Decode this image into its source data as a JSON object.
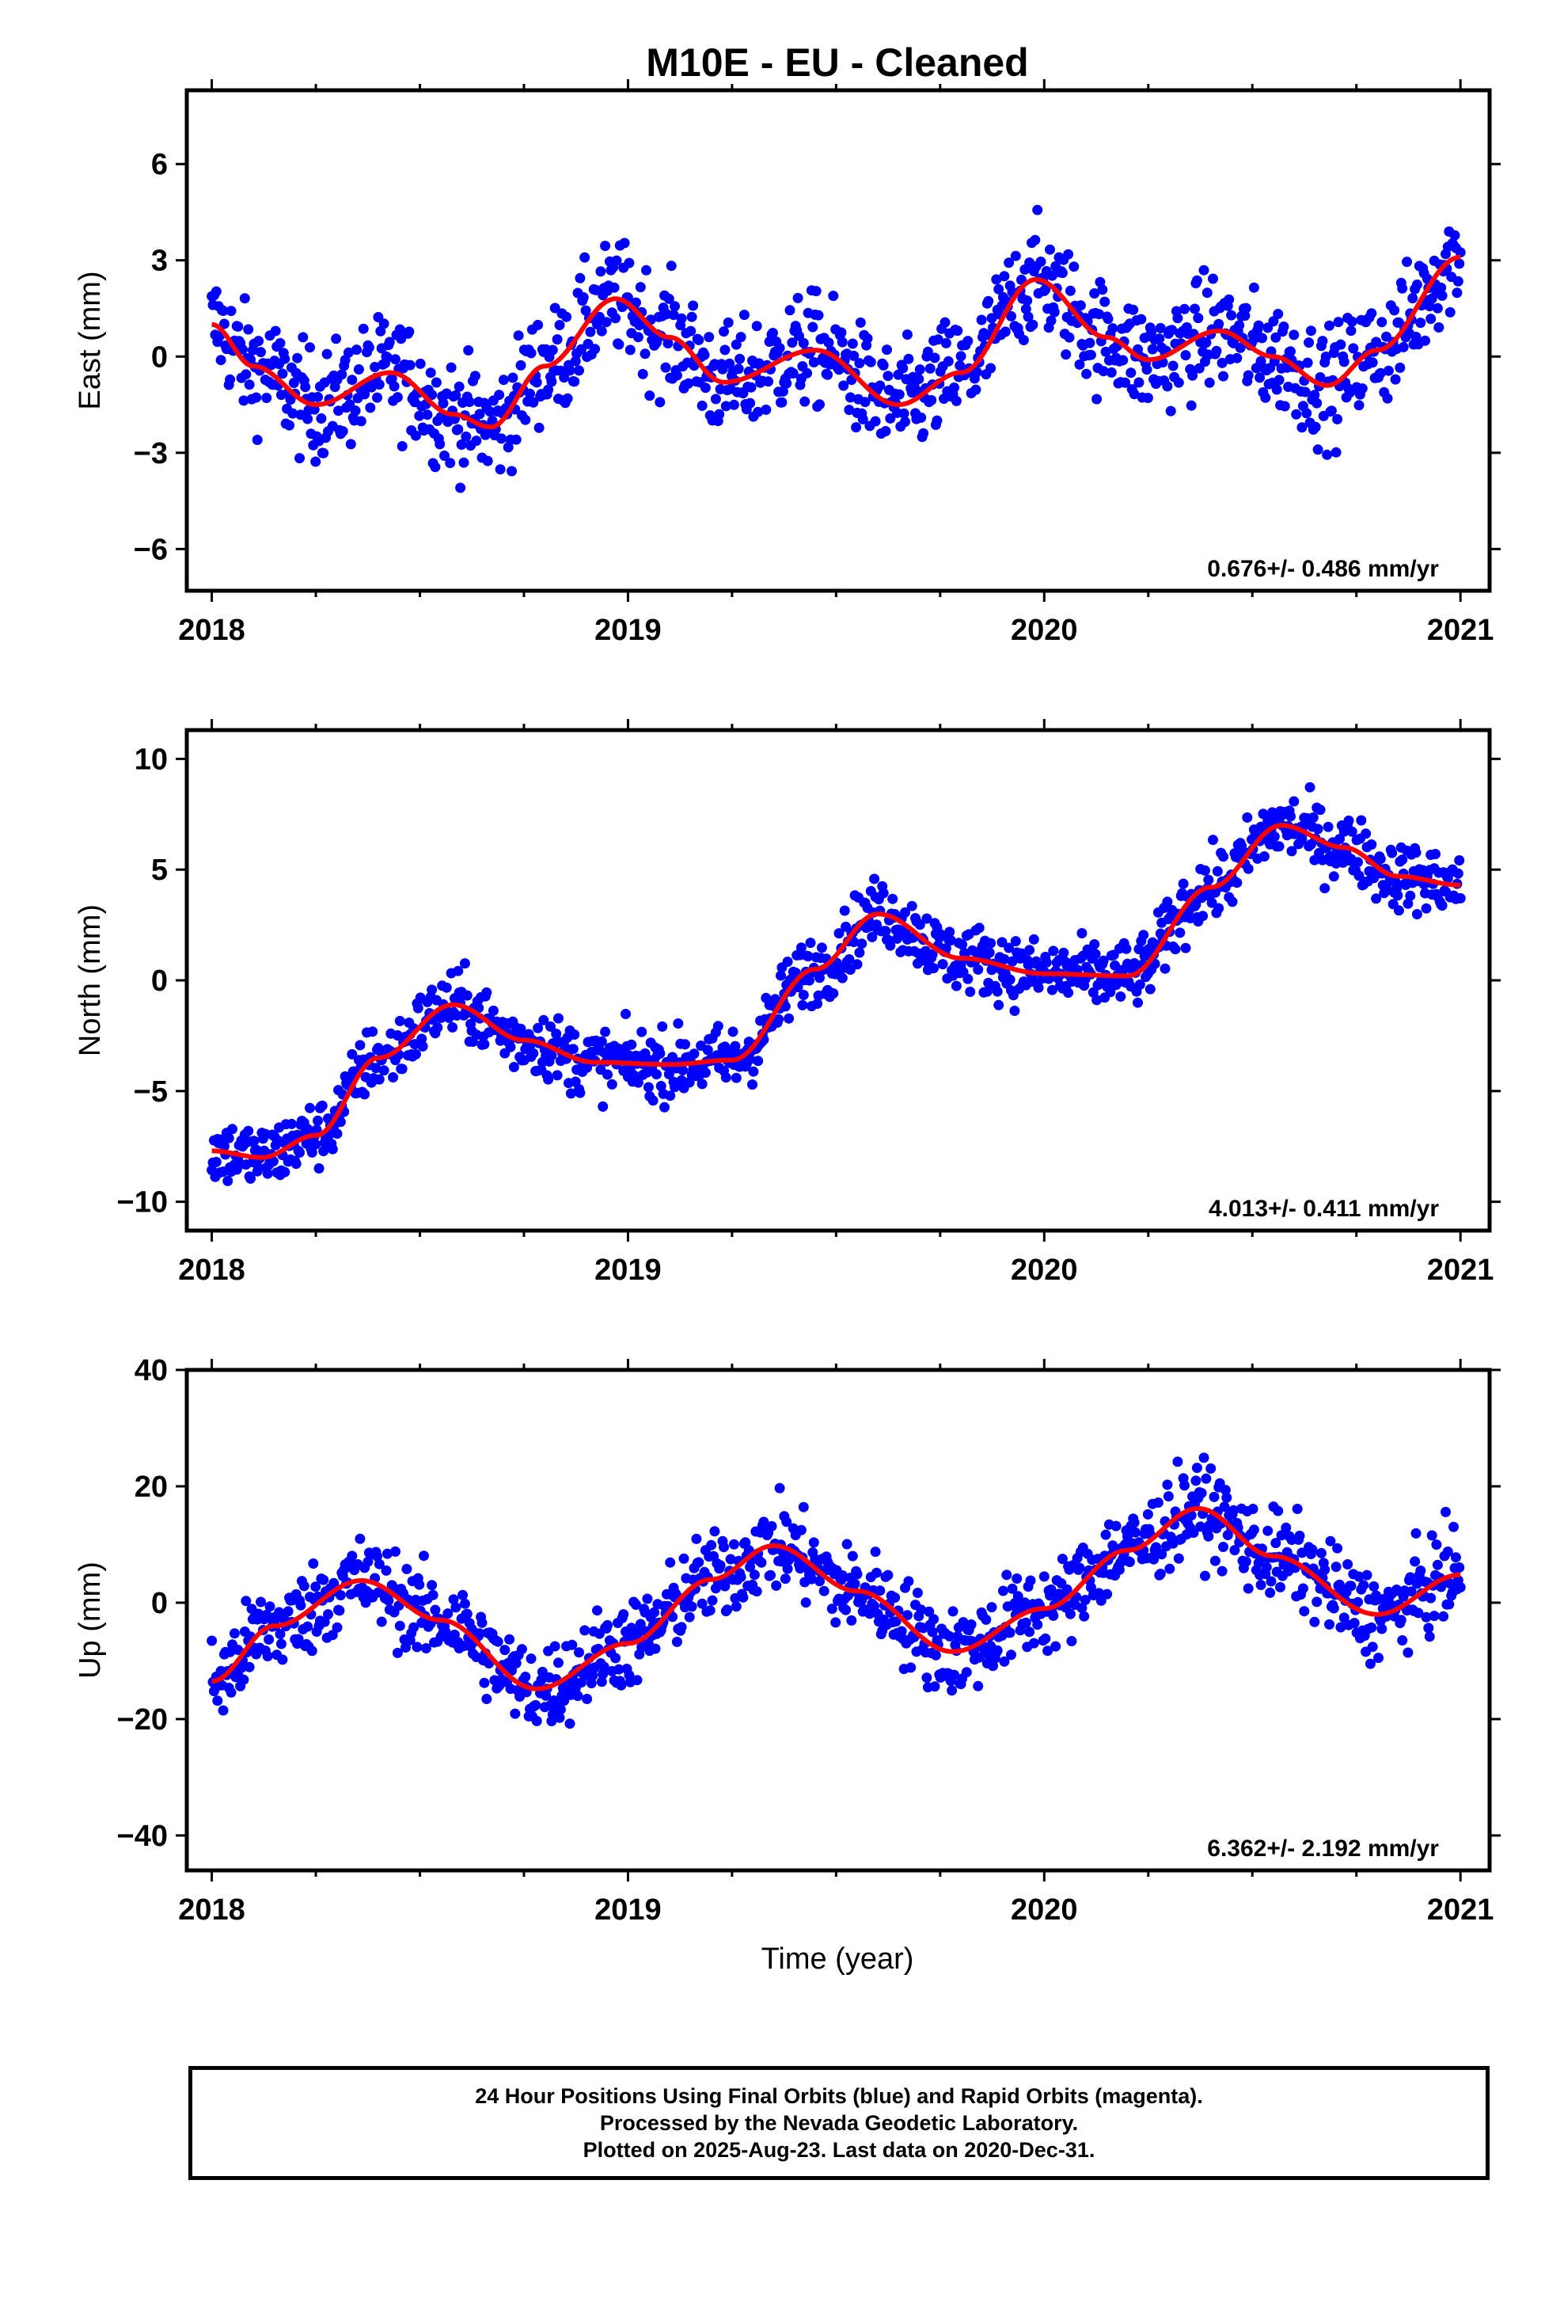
{
  "chart_data": {
    "type": "scatter",
    "title": "M10E  - EU - Cleaned",
    "xlabel": "Time (year)",
    "xlim": [
      2017.94,
      2021.07
    ],
    "xticks": [
      2018,
      2019,
      2020,
      2021
    ],
    "point_color": "#0000ff",
    "fit_color": "#ff0000",
    "panels": [
      {
        "name": "east",
        "ylabel": "East (mm)",
        "ylim": [
          -7.3,
          8.3
        ],
        "yticks": [
          -6,
          -3,
          0,
          3,
          6
        ],
        "ytick_labels": [
          "−6",
          "−3",
          "0",
          "3",
          "6"
        ],
        "velocity": "0.676+/- 0.486 mm/yr",
        "fit": {
          "x": [
            2018.0,
            2018.1,
            2018.25,
            2018.43,
            2018.58,
            2018.67,
            2018.8,
            2018.97,
            2019.1,
            2019.23,
            2019.45,
            2019.65,
            2019.8,
            2019.98,
            2020.15,
            2020.25,
            2020.42,
            2020.55,
            2020.68,
            2020.8,
            2021.0
          ],
          "y": [
            1.0,
            -0.3,
            -1.5,
            -0.5,
            -1.8,
            -2.2,
            -0.3,
            1.8,
            0.6,
            -0.8,
            0.2,
            -1.5,
            -0.5,
            2.4,
            0.6,
            -0.1,
            0.8,
            0.0,
            -0.9,
            0.2,
            3.1
          ]
        },
        "noise": 1.6
      },
      {
        "name": "north",
        "ylabel": "North (mm)",
        "ylim": [
          -11.3,
          11.3
        ],
        "yticks": [
          -10,
          -5,
          0,
          5,
          10
        ],
        "ytick_labels": [
          "−10",
          "−5",
          "0",
          "5",
          "10"
        ],
        "velocity": "4.013+/- 0.411 mm/yr",
        "fit": {
          "x": [
            2018.0,
            2018.12,
            2018.25,
            2018.4,
            2018.58,
            2018.75,
            2018.92,
            2019.1,
            2019.25,
            2019.45,
            2019.6,
            2019.8,
            2020.0,
            2020.2,
            2020.4,
            2020.57,
            2020.72,
            2020.85,
            2021.0
          ],
          "y": [
            -7.7,
            -8.0,
            -7.0,
            -3.5,
            -1.1,
            -2.7,
            -3.7,
            -3.8,
            -3.6,
            0.5,
            3.0,
            1.0,
            0.3,
            0.2,
            4.2,
            7.0,
            6.0,
            4.7,
            4.3
          ]
        },
        "noise": 1.4
      },
      {
        "name": "up",
        "ylabel": "Up (mm)",
        "ylim": [
          -46,
          40
        ],
        "yticks": [
          -40,
          -20,
          0,
          20,
          40
        ],
        "ytick_labels": [
          "−40",
          "−20",
          "0",
          "20",
          "40"
        ],
        "velocity": "6.362+/- 2.192 mm/yr",
        "fit": {
          "x": [
            2018.0,
            2018.15,
            2018.36,
            2018.55,
            2018.78,
            2019.0,
            2019.2,
            2019.35,
            2019.55,
            2019.78,
            2020.0,
            2020.2,
            2020.37,
            2020.55,
            2020.8,
            2021.0
          ],
          "y": [
            -13.5,
            -4.0,
            3.8,
            -3.0,
            -14.8,
            -7.0,
            4.0,
            9.8,
            2.0,
            -8.4,
            -1.0,
            9.0,
            16.2,
            8.0,
            -2.0,
            4.8
          ]
        },
        "noise": 7.0
      }
    ]
  },
  "footer": {
    "line1": "24 Hour Positions Using Final Orbits (blue) and Rapid Orbits (magenta).",
    "line2": "Processed by the Nevada Geodetic Laboratory.",
    "line3": "Plotted on 2025-Aug-23. Last data on 2020-Dec-31."
  }
}
